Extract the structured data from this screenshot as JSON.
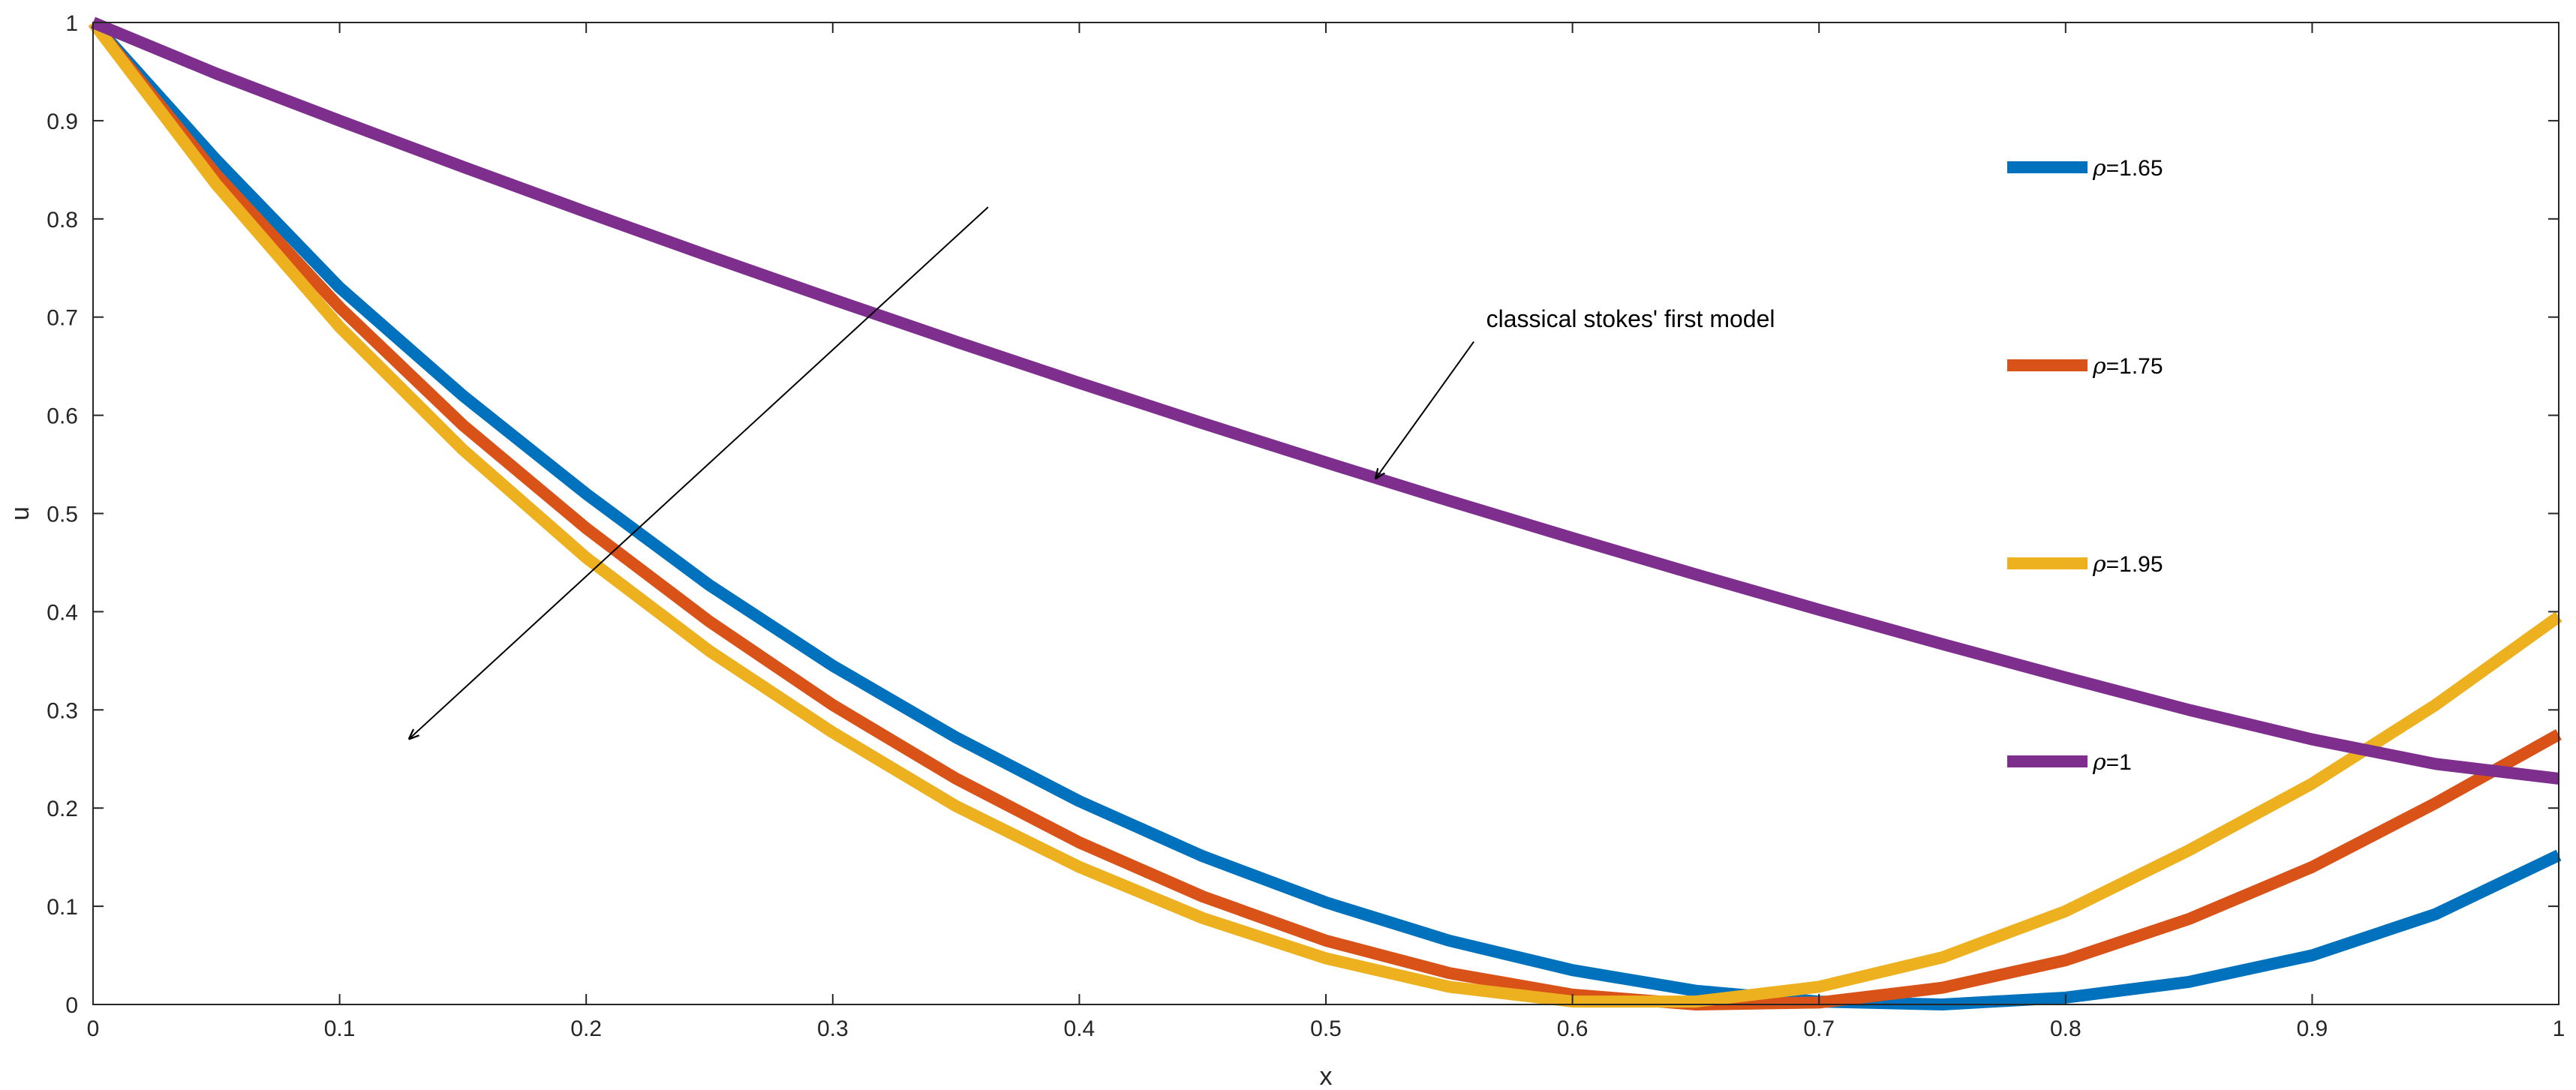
{
  "chart_data": {
    "type": "line",
    "title": "",
    "xlabel": "x",
    "ylabel": "u",
    "xlim": [
      0,
      1
    ],
    "ylim": [
      0,
      1
    ],
    "xticks": [
      "0",
      "0.1",
      "0.2",
      "0.3",
      "0.4",
      "0.5",
      "0.6",
      "0.7",
      "0.8",
      "0.9",
      "1"
    ],
    "yticks": [
      "0",
      "0.1",
      "0.2",
      "0.3",
      "0.4",
      "0.5",
      "0.6",
      "0.7",
      "0.8",
      "0.9",
      "1"
    ],
    "grid": false,
    "legend_position": "right",
    "legend_symbol": "ρ",
    "x": [
      0,
      0.05,
      0.1,
      0.15,
      0.2,
      0.25,
      0.3,
      0.35,
      0.4,
      0.45,
      0.5,
      0.55,
      0.6,
      0.65,
      0.7,
      0.75,
      0.8,
      0.85,
      0.9,
      0.95,
      1
    ],
    "series": [
      {
        "name": "=1.65",
        "color": "#0072BD",
        "values": [
          1.0,
          0.86,
          0.73,
          0.62,
          0.52,
          0.427,
          0.345,
          0.272,
          0.207,
          0.151,
          0.104,
          0.065,
          0.035,
          0.014,
          0.003,
          0.0,
          0.007,
          0.023,
          0.05,
          0.092,
          0.152
        ]
      },
      {
        "name": "=1.75",
        "color": "#D95319",
        "values": [
          1.0,
          0.845,
          0.71,
          0.59,
          0.485,
          0.39,
          0.305,
          0.23,
          0.165,
          0.11,
          0.065,
          0.032,
          0.01,
          0.0,
          0.002,
          0.017,
          0.045,
          0.087,
          0.14,
          0.205,
          0.275
        ]
      },
      {
        "name": "=1.95",
        "color": "#EDB120",
        "values": [
          1.0,
          0.835,
          0.69,
          0.565,
          0.455,
          0.36,
          0.277,
          0.202,
          0.14,
          0.088,
          0.047,
          0.018,
          0.003,
          0.003,
          0.018,
          0.048,
          0.095,
          0.157,
          0.225,
          0.305,
          0.395
        ]
      },
      {
        "name": "=1",
        "color": "#7E2F8E",
        "values": [
          1.0,
          0.948,
          0.9,
          0.853,
          0.807,
          0.762,
          0.718,
          0.675,
          0.633,
          0.592,
          0.552,
          0.513,
          0.475,
          0.438,
          0.402,
          0.367,
          0.333,
          0.3,
          0.27,
          0.245,
          0.23
        ]
      }
    ],
    "annotations": [
      {
        "text": "classical stokes' first model",
        "x": 0.565,
        "y": 0.69,
        "arrow_from": [
          0.56,
          0.675
        ],
        "arrow_to": [
          0.52,
          0.535
        ]
      },
      {
        "text": "",
        "arrow_from": [
          0.363,
          0.812
        ],
        "arrow_to": [
          0.128,
          0.27
        ]
      }
    ]
  }
}
